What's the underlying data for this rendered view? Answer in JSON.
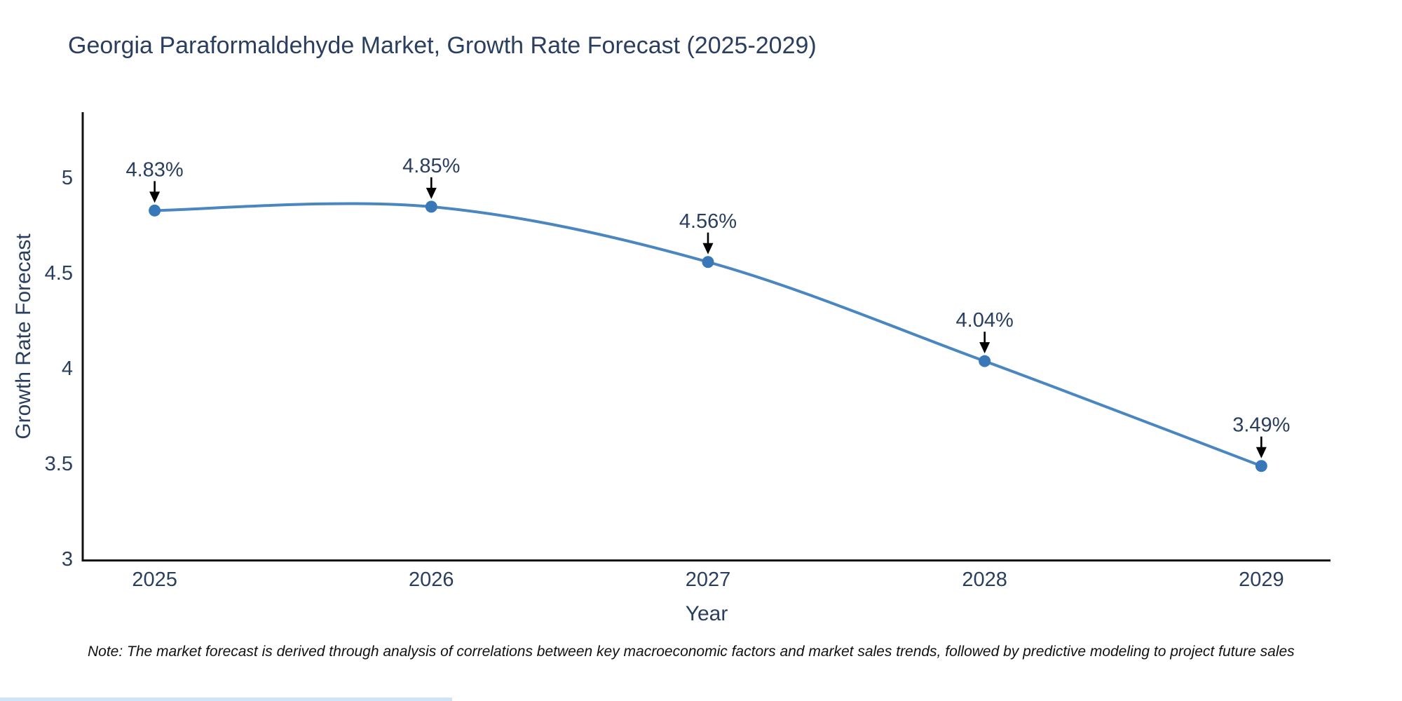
{
  "title": "Georgia Paraformaldehyde Market, Growth Rate Forecast (2025-2029)",
  "note": "Note: The market forecast is derived through analysis of correlations between key macroeconomic factors and market sales trends, followed by predictive modeling to project future sales",
  "chart_data": {
    "type": "line",
    "title": "Georgia Paraformaldehyde Market, Growth Rate Forecast (2025-2029)",
    "xlabel": "Year",
    "ylabel": "Growth Rate Forecast",
    "x": [
      2025,
      2026,
      2027,
      2028,
      2029
    ],
    "x_tick_labels": [
      "2025",
      "2026",
      "2027",
      "2028",
      "2029"
    ],
    "values": [
      4.83,
      4.85,
      4.56,
      4.04,
      3.49
    ],
    "point_labels": [
      "4.83%",
      "4.85%",
      "4.56%",
      "4.04%",
      "3.49%"
    ],
    "y_ticks": [
      3,
      3.5,
      4,
      4.5,
      5
    ],
    "y_tick_labels": [
      "3",
      "3.5",
      "4",
      "4.5",
      "5"
    ],
    "ylim": [
      3,
      5.346
    ],
    "xlim": [
      2024.74,
      2029.25
    ],
    "grid": false,
    "legend_position": "none",
    "line_shape": "spline",
    "annotation_arrows": true,
    "colors": {
      "line": "#4a87c0",
      "marker": "#3878b8",
      "axis": "#111111",
      "arrow": "#000000",
      "tick_text": "#2a3f5f",
      "annotation_text": "#2a3f5f"
    }
  }
}
